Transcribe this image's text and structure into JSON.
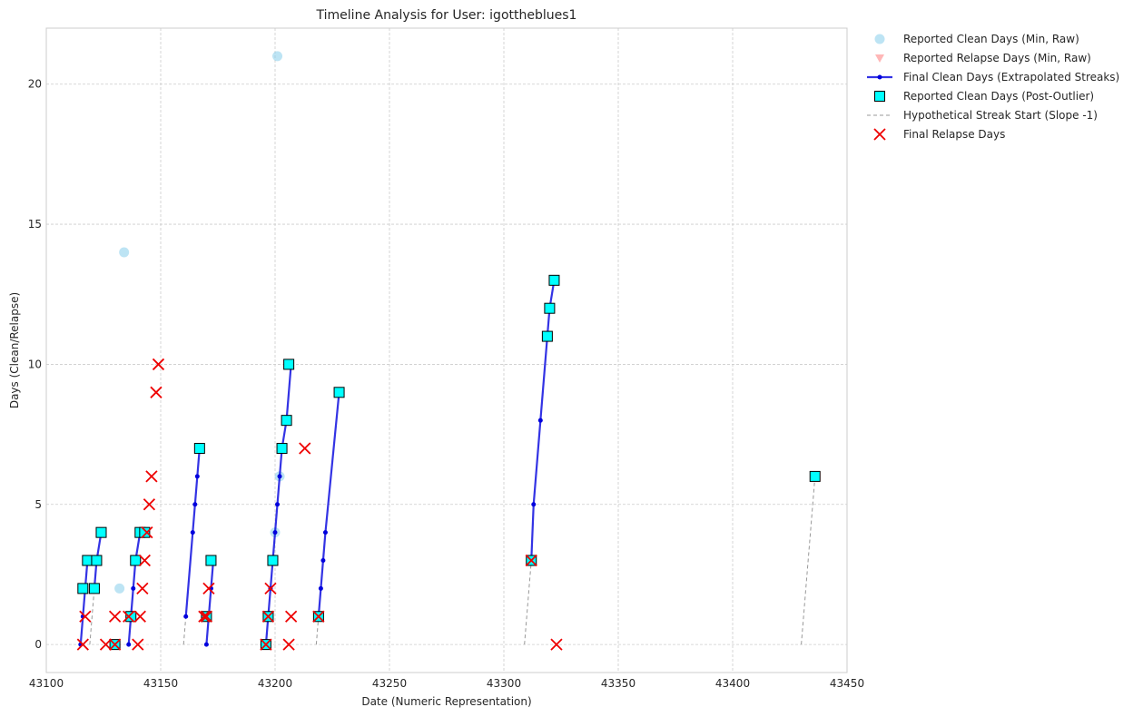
{
  "chart_data": {
    "type": "scatter",
    "title": "Timeline Analysis for User: igottheblues1",
    "xlabel": "Date (Numeric Representation)",
    "ylabel": "Days (Clean/Relapse)",
    "xlim": [
      43100,
      43450
    ],
    "ylim": [
      -1,
      22
    ],
    "xticks": [
      43100,
      43150,
      43200,
      43250,
      43300,
      43350,
      43400,
      43450
    ],
    "yticks": [
      0,
      5,
      10,
      15,
      20
    ],
    "grid": true,
    "legend_position": "outside-top-right",
    "colors": {
      "raw_clean": "#87ceeb",
      "raw_relapse": "#ff9999",
      "final_clean": "#0000dd",
      "post_outlier": "#00ffff",
      "hypothetical": "#999999",
      "final_relapse": "#ee0000"
    },
    "series": [
      {
        "name": "Reported Clean Days (Min, Raw)",
        "marker": "circle",
        "points": [
          [
            43134,
            14
          ],
          [
            43132,
            2
          ],
          [
            43201,
            21
          ],
          [
            43202,
            6
          ],
          [
            43200,
            4
          ]
        ]
      },
      {
        "name": "Reported Relapse Days (Min, Raw)",
        "marker": "triangle-down",
        "points": []
      },
      {
        "name": "Final Clean Days (Extrapolated Streaks)",
        "marker": "line-dot",
        "segments": [
          [
            [
              43115,
              0
            ],
            [
              43116,
              1
            ],
            [
              43117,
              2
            ],
            [
              43118,
              3
            ]
          ],
          [
            [
              43121,
              2
            ],
            [
              43122,
              3
            ],
            [
              43124,
              4
            ]
          ],
          [
            [
              43136,
              0
            ],
            [
              43137,
              1
            ],
            [
              43138,
              2
            ],
            [
              43139,
              3
            ],
            [
              43141,
              4
            ],
            [
              43143,
              4
            ]
          ],
          [
            [
              43161,
              1
            ],
            [
              43164,
              4
            ],
            [
              43165,
              5
            ],
            [
              43166,
              6
            ],
            [
              43167,
              7
            ]
          ],
          [
            [
              43170,
              0
            ],
            [
              43171,
              1
            ],
            [
              43172,
              2
            ],
            [
              43173,
              3
            ]
          ],
          [
            [
              43196,
              0
            ],
            [
              43197,
              1
            ],
            [
              43198,
              2
            ],
            [
              43199,
              3
            ],
            [
              43200,
              4
            ],
            [
              43201,
              5
            ],
            [
              43202,
              6
            ],
            [
              43203,
              7
            ],
            [
              43205,
              8
            ],
            [
              43207,
              10
            ]
          ],
          [
            [
              43219,
              1
            ],
            [
              43220,
              2
            ],
            [
              43221,
              3
            ],
            [
              43222,
              4
            ],
            [
              43228,
              9
            ]
          ],
          [
            [
              43312,
              3
            ],
            [
              43313,
              5
            ],
            [
              43316,
              8
            ],
            [
              43319,
              11
            ],
            [
              43320,
              12
            ],
            [
              43322,
              13
            ]
          ]
        ]
      },
      {
        "name": "Reported Clean Days (Post-Outlier)",
        "marker": "square",
        "points": [
          [
            43116,
            2
          ],
          [
            43118,
            3
          ],
          [
            43121,
            2
          ],
          [
            43122,
            3
          ],
          [
            43124,
            4
          ],
          [
            43130,
            0
          ],
          [
            43137,
            1
          ],
          [
            43139,
            3
          ],
          [
            43141,
            4
          ],
          [
            43143,
            4
          ],
          [
            43167,
            7
          ],
          [
            43170,
            1
          ],
          [
            43172,
            3
          ],
          [
            43196,
            0
          ],
          [
            43197,
            1
          ],
          [
            43199,
            3
          ],
          [
            43203,
            7
          ],
          [
            43205,
            8
          ],
          [
            43206,
            10
          ],
          [
            43219,
            1
          ],
          [
            43228,
            9
          ],
          [
            43312,
            3
          ],
          [
            43319,
            11
          ],
          [
            43320,
            12
          ],
          [
            43322,
            13
          ],
          [
            43436,
            6
          ]
        ]
      },
      {
        "name": "Hypothetical Streak Start (Slope -1)",
        "marker": "dashed",
        "segments": [
          [
            [
              43119,
              0
            ],
            [
              43121,
              2
            ]
          ],
          [
            [
              43160,
              0
            ],
            [
              43161,
              1
            ]
          ],
          [
            [
              43218,
              0
            ],
            [
              43219,
              1
            ]
          ],
          [
            [
              43309,
              0
            ],
            [
              43312,
              3
            ]
          ],
          [
            [
              43430,
              0
            ],
            [
              43436,
              6
            ]
          ]
        ]
      },
      {
        "name": "Final Relapse Days",
        "marker": "x",
        "points": [
          [
            43116,
            0
          ],
          [
            43117,
            1
          ],
          [
            43126,
            0
          ],
          [
            43130,
            1
          ],
          [
            43130,
            0
          ],
          [
            43136,
            1
          ],
          [
            43140,
            0
          ],
          [
            43141,
            1
          ],
          [
            43142,
            2
          ],
          [
            43143,
            3
          ],
          [
            43144,
            4
          ],
          [
            43145,
            5
          ],
          [
            43146,
            6
          ],
          [
            43148,
            9
          ],
          [
            43149,
            10
          ],
          [
            43169,
            1
          ],
          [
            43170,
            1
          ],
          [
            43171,
            2
          ],
          [
            43196,
            0
          ],
          [
            43197,
            1
          ],
          [
            43198,
            2
          ],
          [
            43206,
            0
          ],
          [
            43207,
            1
          ],
          [
            43213,
            7
          ],
          [
            43219,
            1
          ],
          [
            43312,
            3
          ],
          [
            43323,
            0
          ]
        ]
      }
    ]
  }
}
